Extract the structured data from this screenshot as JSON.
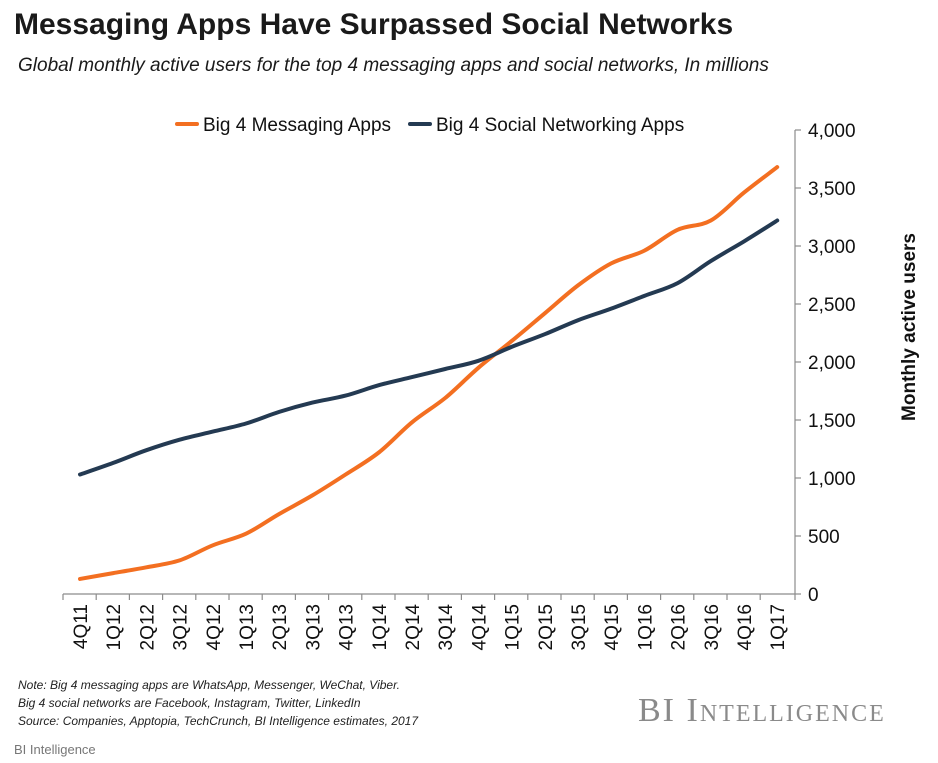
{
  "header": {
    "title": "Messaging Apps Have Surpassed Social Networks",
    "subtitle": "Global monthly active users for the top 4 messaging apps and social networks, In millions"
  },
  "chart_data": {
    "type": "line",
    "title": "Messaging Apps Have Surpassed Social Networks",
    "subtitle": "Global monthly active users for the top 4 messaging apps and social networks, In millions",
    "xlabel": "",
    "ylabel": "Monthly active users",
    "ylim": [
      0,
      4000
    ],
    "yticks": [
      0,
      500,
      1000,
      1500,
      2000,
      2500,
      3000,
      3500,
      4000
    ],
    "ytick_labels": [
      "0",
      "500",
      "1,000",
      "1,500",
      "2,000",
      "2,500",
      "3,000",
      "3,500",
      "4,000"
    ],
    "y_axis_side": "right",
    "grid": false,
    "legend_position": "top",
    "categories": [
      "4Q11",
      "1Q12",
      "2Q12",
      "3Q12",
      "4Q12",
      "1Q13",
      "2Q13",
      "3Q13",
      "4Q13",
      "1Q14",
      "2Q14",
      "3Q14",
      "4Q14",
      "1Q15",
      "2Q15",
      "3Q15",
      "4Q15",
      "1Q16",
      "2Q16",
      "3Q16",
      "4Q16",
      "1Q17"
    ],
    "series": [
      {
        "name": "Big 4 Messaging Apps",
        "color": "#f36f21",
        "values": [
          130,
          180,
          230,
          290,
          420,
          520,
          690,
          850,
          1030,
          1220,
          1480,
          1690,
          1950,
          2180,
          2420,
          2660,
          2850,
          2960,
          3140,
          3220,
          3460,
          3680
        ]
      },
      {
        "name": "Big 4 Social Networking Apps",
        "color": "#243a52",
        "values": [
          1030,
          1130,
          1240,
          1330,
          1400,
          1470,
          1570,
          1650,
          1710,
          1800,
          1870,
          1940,
          2010,
          2130,
          2240,
          2360,
          2460,
          2570,
          2680,
          2870,
          3040,
          3220
        ]
      }
    ]
  },
  "notes": {
    "line1": "Note: Big 4 messaging apps are WhatsApp, Messenger, WeChat, Viber.",
    "line2": "Big 4 social networks are Facebook, Instagram, Twitter, LinkedIn",
    "line3": "Source: Companies,  Apptopia, TechCrunch,  BI Intelligence estimates, 2017"
  },
  "brand": {
    "logo_text": "BI Intelligence",
    "credit": "BI Intelligence"
  }
}
